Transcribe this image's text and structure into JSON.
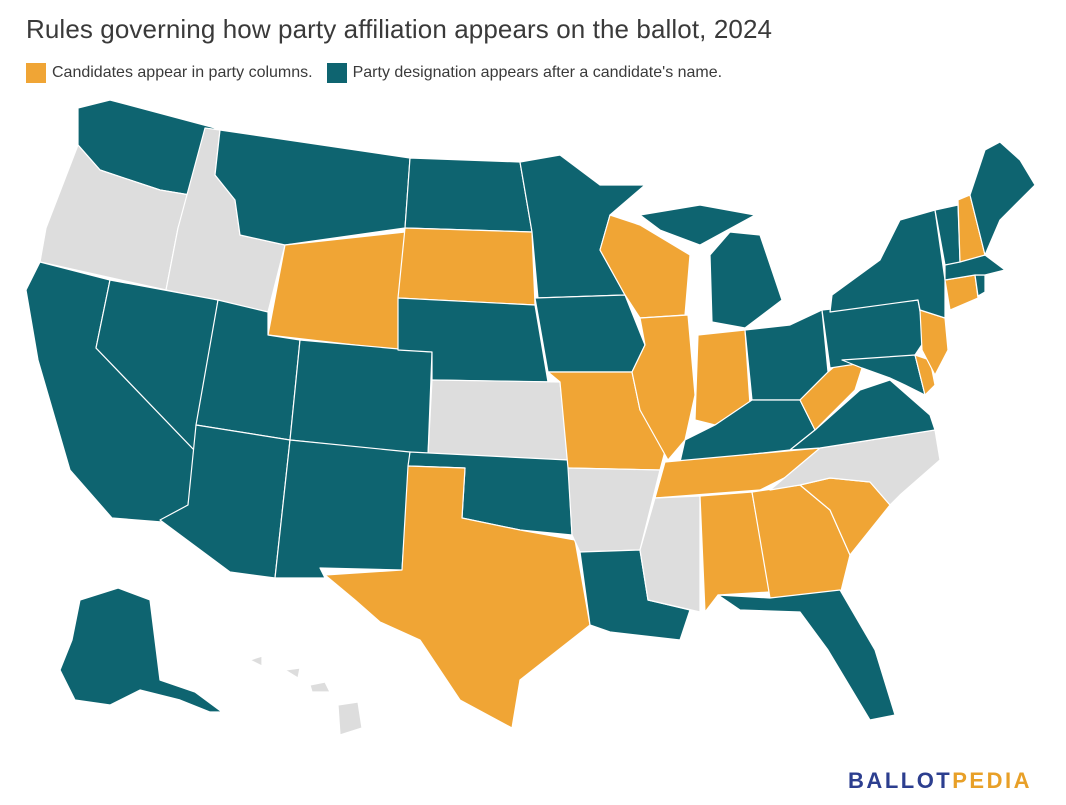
{
  "title": "Rules governing how party affiliation appears on the ballot, 2024",
  "legend": [
    {
      "key": "columns",
      "label": "Candidates appear in party columns.",
      "color": "#f0a535"
    },
    {
      "key": "designation",
      "label": "Party designation appears after a candidate's name.",
      "color": "#0e6470"
    }
  ],
  "no_data_color": "#dddddd",
  "brand": {
    "part1": "BALLOT",
    "part2": "PEDIA"
  },
  "states": {
    "WA": "designation",
    "OR": "none",
    "CA": "designation",
    "ID": "none",
    "NV": "designation",
    "MT": "designation",
    "WY": "columns",
    "UT": "designation",
    "AZ": "designation",
    "CO": "designation",
    "NM": "designation",
    "ND": "designation",
    "SD": "columns",
    "NE": "designation",
    "KS": "none",
    "OK": "designation",
    "TX": "columns",
    "MN": "designation",
    "IA": "designation",
    "MO": "columns",
    "AR": "none",
    "LA": "designation",
    "WI": "columns",
    "IL": "columns",
    "MS": "none",
    "MI": "designation",
    "IN": "columns",
    "KY": "designation",
    "TN": "columns",
    "AL": "columns",
    "OH": "designation",
    "WV": "columns",
    "GA": "columns",
    "FL": "designation",
    "SC": "columns",
    "NC": "none",
    "VA": "designation",
    "PA": "designation",
    "NY": "designation",
    "MD": "designation",
    "DE": "columns",
    "NJ": "columns",
    "CT": "columns",
    "RI": "designation",
    "MA": "designation",
    "VT": "designation",
    "NH": "columns",
    "ME": "designation",
    "AK": "designation",
    "HI": "none"
  }
}
